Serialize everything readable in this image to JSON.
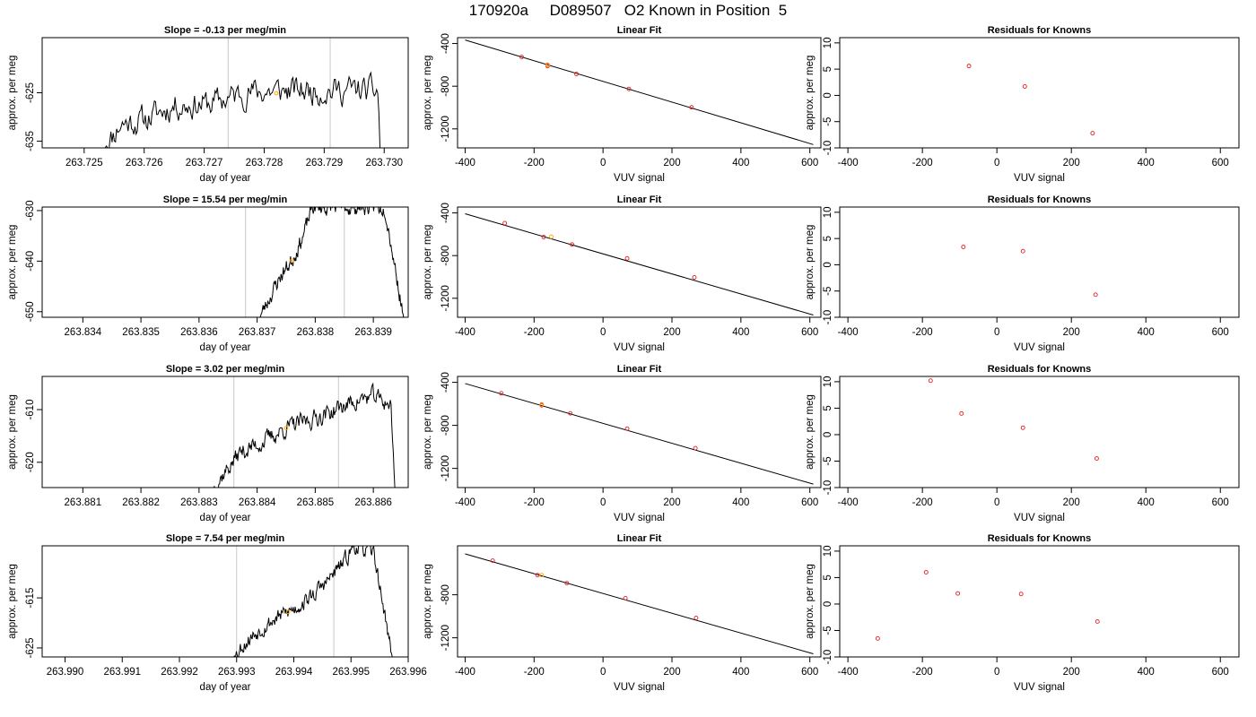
{
  "figure": {
    "title": "170920a     D089507   O2 Known in Position  5"
  },
  "colors": {
    "trace": "#000000",
    "guide_lines": "#c8c8c8",
    "known_points": "#e02020",
    "sample_point": "#ffa500",
    "fit_line": "#000000"
  },
  "rows": [
    {
      "timeseries": {
        "title": "Slope =  -0.13  per meg/min",
        "xlabel": "day of year",
        "ylabel": "approx. per meg",
        "xlim": [
          263.7243,
          263.7304
        ],
        "ylim": [
          -636.4,
          -613.6
        ],
        "xticks": [
          263.725,
          263.726,
          263.727,
          263.728,
          263.729,
          263.73
        ],
        "xtick_labels": [
          "263.725",
          "263.726",
          "263.727",
          "263.728",
          "263.729",
          "263.730"
        ],
        "yticks": [
          -625,
          -635
        ],
        "ytick_labels": [
          "-625",
          "-635"
        ],
        "guides": [
          263.7274,
          263.7291
        ],
        "sample_point": {
          "x": 263.7282,
          "y": -625.1
        },
        "trace": {
          "start": 263.72535,
          "end": 263.72993,
          "seed": 11,
          "anchors": [
            [
              263.72535,
              -636.4
            ],
            [
              263.7256,
              -631.4
            ],
            [
              263.726,
              -630.6
            ],
            [
              263.7265,
              -627.6
            ],
            [
              263.7271,
              -627.3
            ],
            [
              263.7277,
              -624.9
            ],
            [
              263.7283,
              -624.6
            ],
            [
              263.7289,
              -624.5
            ],
            [
              263.7295,
              -624.4
            ],
            [
              263.7299,
              -624.8
            ],
            [
              263.72993,
              -636.4
            ]
          ],
          "amp": 2.3
        }
      },
      "fit": {
        "title": "Linear Fit",
        "xlabel": "VUV signal",
        "ylabel": "approx. per meg",
        "xlim": [
          -422,
          632
        ],
        "ylim": [
          -1378,
          -345
        ],
        "xticks": [
          -400,
          -200,
          0,
          200,
          400,
          600
        ],
        "xtick_labels": [
          "-400",
          "-200",
          "0",
          "200",
          "400",
          "600"
        ],
        "yticks": [
          -400,
          -800,
          -1200
        ],
        "ytick_labels": [
          "-400",
          "-800",
          "-1200"
        ],
        "line": [
          [
            -400,
            -367
          ],
          [
            610,
            -1347
          ]
        ],
        "known_points": [
          [
            -236,
            -526
          ],
          [
            -161,
            -600
          ],
          [
            -161,
            -612
          ],
          [
            -77,
            -686
          ],
          [
            75,
            -826
          ],
          [
            257,
            -998
          ]
        ],
        "sample_points": [
          [
            -161,
            -604
          ]
        ]
      },
      "residuals": {
        "title": "Residuals for Knowns",
        "xlabel": "VUV signal",
        "ylabel": "approx. per meg",
        "xlim": [
          -422,
          650
        ],
        "ylim": [
          -10,
          11
        ],
        "xticks": [
          -400,
          -200,
          0,
          200,
          400,
          600
        ],
        "xtick_labels": [
          "-400",
          "-200",
          "0",
          "200",
          "400",
          "600"
        ],
        "yticks": [
          10,
          5,
          0,
          -5,
          -10
        ],
        "ytick_labels": [
          "10",
          "5",
          "0",
          "-5",
          "-10"
        ],
        "points": [
          [
            -75,
            5.6
          ],
          [
            75,
            1.7
          ],
          [
            257,
            -7.2
          ]
        ]
      }
    },
    {
      "timeseries": {
        "title": "Slope =  15.54  per meg/min",
        "xlabel": "day of year",
        "ylabel": "approx. per meg",
        "xlim": [
          263.8333,
          263.8396
        ],
        "ylim": [
          -651.1,
          -629.3
        ],
        "xticks": [
          263.834,
          263.835,
          263.836,
          263.837,
          263.838,
          263.839
        ],
        "xtick_labels": [
          "263.834",
          "263.835",
          "263.836",
          "263.837",
          "263.838",
          "263.839"
        ],
        "yticks": [
          -630,
          -640,
          -650
        ],
        "ytick_labels": [
          "-630",
          "-640",
          "-650"
        ],
        "guides": [
          263.8368,
          263.8385
        ],
        "sample_point": {
          "x": 263.8376,
          "y": -639.9
        },
        "trace": {
          "start": 263.83705,
          "end": 263.83952,
          "seed": 23,
          "anchors": [
            [
              263.83705,
              -651.1
            ],
            [
              263.8372,
              -647.5
            ],
            [
              263.8374,
              -643.0
            ],
            [
              263.8376,
              -639.8
            ],
            [
              263.8378,
              -634.8
            ],
            [
              263.83795,
              -629.3
            ],
            [
              263.8392,
              -629.3
            ],
            [
              263.83952,
              -651.1
            ]
          ],
          "amp": 1.3
        }
      },
      "fit": {
        "title": "Linear Fit",
        "xlabel": "VUV signal",
        "ylabel": "approx. per meg",
        "xlim": [
          -422,
          632
        ],
        "ylim": [
          -1378,
          -345
        ],
        "xticks": [
          -400,
          -200,
          0,
          200,
          400,
          600
        ],
        "xtick_labels": [
          "-400",
          "-200",
          "0",
          "200",
          "400",
          "600"
        ],
        "yticks": [
          -400,
          -800,
          -1200
        ],
        "ytick_labels": [
          "-400",
          "-800",
          "-1200"
        ],
        "line": [
          [
            -400,
            -408
          ],
          [
            610,
            -1357
          ]
        ],
        "known_points": [
          [
            -285,
            -496
          ],
          [
            -172,
            -626
          ],
          [
            -90,
            -696
          ],
          [
            70,
            -826
          ],
          [
            265,
            -1004
          ]
        ],
        "sample_points": [
          [
            -150,
            -623
          ]
        ]
      },
      "residuals": {
        "title": "Residuals for Knowns",
        "xlabel": "VUV signal",
        "ylabel": "approx. per meg",
        "xlim": [
          -422,
          650
        ],
        "ylim": [
          -10,
          11
        ],
        "xticks": [
          -400,
          -200,
          0,
          200,
          400,
          600
        ],
        "xtick_labels": [
          "-400",
          "-200",
          "0",
          "200",
          "400",
          "600"
        ],
        "yticks": [
          10,
          5,
          0,
          -5,
          -10
        ],
        "ytick_labels": [
          "10",
          "5",
          "0",
          "-5",
          "-10"
        ],
        "points": [
          [
            -90,
            3.4
          ],
          [
            70,
            2.6
          ],
          [
            265,
            -5.7
          ]
        ]
      }
    },
    {
      "timeseries": {
        "title": "Slope =  3.02  per meg/min",
        "xlabel": "day of year",
        "ylabel": "approx. per meg",
        "xlim": [
          263.8803,
          263.8866
        ],
        "ylim": [
          -624.8,
          -603.7
        ],
        "xticks": [
          263.881,
          263.882,
          263.883,
          263.884,
          263.885,
          263.886
        ],
        "xtick_labels": [
          "263.881",
          "263.882",
          "263.883",
          "263.884",
          "263.885",
          "263.886"
        ],
        "yticks": [
          -610,
          -620
        ],
        "ytick_labels": [
          "-610",
          "-620"
        ],
        "guides": [
          263.8836,
          263.8854
        ],
        "sample_point": {
          "x": 263.8845,
          "y": -613.5
        },
        "trace": {
          "start": 263.88325,
          "end": 263.88637,
          "seed": 37,
          "anchors": [
            [
              263.88325,
              -624.8
            ],
            [
              263.8834,
              -622.5
            ],
            [
              263.8837,
              -618.2
            ],
            [
              263.8841,
              -616.1
            ],
            [
              263.8845,
              -613.5
            ],
            [
              263.8849,
              -612.0
            ],
            [
              263.8853,
              -610.3
            ],
            [
              263.8857,
              -608.3
            ],
            [
              263.886,
              -607.5
            ],
            [
              263.8863,
              -609.0
            ],
            [
              263.88637,
              -624.8
            ]
          ],
          "amp": 1.4
        }
      },
      "fit": {
        "title": "Linear Fit",
        "xlabel": "VUV signal",
        "ylabel": "approx. per meg",
        "xlim": [
          -422,
          632
        ],
        "ylim": [
          -1378,
          -345
        ],
        "xticks": [
          -400,
          -200,
          0,
          200,
          400,
          600
        ],
        "xtick_labels": [
          "-400",
          "-200",
          "0",
          "200",
          "400",
          "600"
        ],
        "yticks": [
          -400,
          -800,
          -1200
        ],
        "ytick_labels": [
          "-400",
          "-800",
          "-1200"
        ],
        "line": [
          [
            -400,
            -411
          ],
          [
            610,
            -1346
          ]
        ],
        "known_points": [
          [
            -295,
            -502
          ],
          [
            -178,
            -606
          ],
          [
            -178,
            -614
          ],
          [
            -95,
            -688
          ],
          [
            70,
            -831
          ],
          [
            268,
            -1012
          ]
        ],
        "sample_points": [
          [
            -178,
            -609
          ]
        ]
      },
      "residuals": {
        "title": "Residuals for Knowns",
        "xlabel": "VUV signal",
        "ylabel": "approx. per meg",
        "xlim": [
          -422,
          650
        ],
        "ylim": [
          -10,
          11
        ],
        "xticks": [
          -400,
          -200,
          0,
          200,
          400,
          600
        ],
        "xtick_labels": [
          "-400",
          "-200",
          "0",
          "200",
          "400",
          "600"
        ],
        "points": [
          [
            -178,
            10.2
          ],
          [
            -95,
            4.0
          ],
          [
            70,
            1.3
          ],
          [
            268,
            -4.5
          ]
        ],
        "yticks": [
          10,
          5,
          0,
          -5,
          -10
        ],
        "ytick_labels": [
          "10",
          "5",
          "0",
          "-5",
          "-10"
        ]
      }
    },
    {
      "timeseries": {
        "title": "Slope =  7.54  per meg/min",
        "xlabel": "day of year",
        "ylabel": "approx. per meg",
        "xlim": [
          263.9896,
          263.996
        ],
        "ylim": [
          -626.8,
          -604.6
        ],
        "xticks": [
          263.99,
          263.991,
          263.992,
          263.993,
          263.994,
          263.995,
          263.996
        ],
        "xtick_labels": [
          "263.990",
          "263.991",
          "263.992",
          "263.993",
          "263.994",
          "263.995",
          "263.996"
        ],
        "yticks": [
          -615,
          -625
        ],
        "ytick_labels": [
          "-615",
          "-625"
        ],
        "guides": [
          263.993,
          263.9947
        ],
        "sample_point": {
          "x": 263.9939,
          "y": -617.8
        },
        "trace": {
          "start": 263.99295,
          "end": 263.99572,
          "seed": 53,
          "anchors": [
            [
              263.99295,
              -626.8
            ],
            [
              263.9931,
              -624.5
            ],
            [
              263.9934,
              -621.3
            ],
            [
              263.9937,
              -619.0
            ],
            [
              263.994,
              -617.2
            ],
            [
              263.9943,
              -614.8
            ],
            [
              263.9946,
              -611.5
            ],
            [
              263.9949,
              -607.5
            ],
            [
              263.99505,
              -604.6
            ],
            [
              263.9954,
              -606.0
            ],
            [
              263.99572,
              -626.8
            ]
          ],
          "amp": 1.3
        }
      },
      "fit": {
        "title": "Linear Fit",
        "xlabel": "VUV signal",
        "ylabel": "approx. per meg",
        "xlim": [
          -422,
          632
        ],
        "ylim": [
          -1378,
          -345
        ],
        "xticks": [
          -400,
          -200,
          0,
          200,
          400,
          600
        ],
        "xtick_labels": [
          "-400",
          "-200",
          "0",
          "200",
          "400",
          "600"
        ],
        "yticks": [
          -800,
          -1200
        ],
        "ytick_labels": [
          "-800",
          "-1200"
        ],
        "line": [
          [
            -400,
            -420
          ],
          [
            610,
            -1349
          ]
        ],
        "known_points": [
          [
            -320,
            -483
          ],
          [
            -190,
            -617
          ],
          [
            -105,
            -692
          ],
          [
            65,
            -832
          ],
          [
            270,
            -1015
          ]
        ],
        "sample_points": [
          [
            -178,
            -617
          ]
        ]
      },
      "residuals": {
        "title": "Residuals for Knowns",
        "xlabel": "VUV signal",
        "ylabel": "approx. per meg",
        "xlim": [
          -422,
          650
        ],
        "ylim": [
          -10,
          11
        ],
        "xticks": [
          -400,
          -200,
          0,
          200,
          400,
          600
        ],
        "xtick_labels": [
          "-400",
          "-200",
          "0",
          "200",
          "400",
          "600"
        ],
        "yticks": [
          10,
          5,
          0,
          -5,
          -10
        ],
        "ytick_labels": [
          "10",
          "5",
          "0",
          "-5",
          "-10"
        ],
        "points": [
          [
            -320,
            -6.5
          ],
          [
            -190,
            6.0
          ],
          [
            -105,
            2.0
          ],
          [
            65,
            1.9
          ],
          [
            270,
            -3.3
          ]
        ]
      }
    }
  ]
}
